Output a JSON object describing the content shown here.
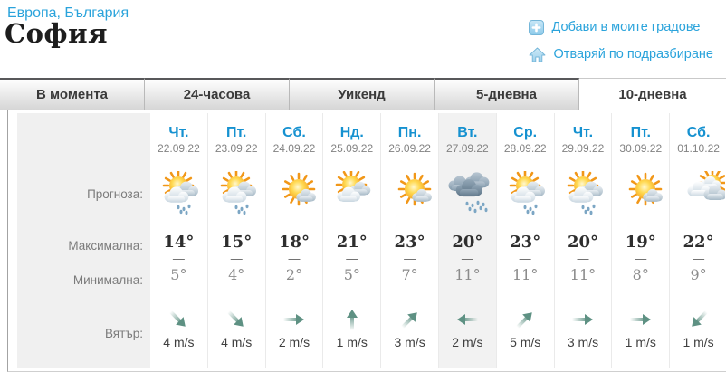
{
  "breadcrumb": {
    "region": "Европа",
    "separator": ", ",
    "country": "България"
  },
  "title": "София",
  "actions": [
    {
      "icon": "add-icon",
      "label": "Добави в моите градове"
    },
    {
      "icon": "home-icon",
      "label": "Отваряй по подразбиране"
    }
  ],
  "tabs": [
    {
      "label": "В момента",
      "active": false
    },
    {
      "label": "24-часова",
      "active": false
    },
    {
      "label": "Уикенд",
      "active": false
    },
    {
      "label": "5-дневна",
      "active": false
    },
    {
      "label": "10-дневна",
      "active": true
    }
  ],
  "row_labels": {
    "forecast": "Прогноза:",
    "max": "Максимална:",
    "min": "Минимална:",
    "wind": "Вятър:"
  },
  "temp_divider": "—",
  "days": [
    {
      "name": "Чт.",
      "date": "22.09.22",
      "icon": "sun-cloud-rain",
      "max": "14°",
      "min": "5°",
      "wind_dir": "SE",
      "wind_speed": "4 m/s",
      "highlight": false
    },
    {
      "name": "Пт.",
      "date": "23.09.22",
      "icon": "sun-cloud-rain",
      "max": "15°",
      "min": "4°",
      "wind_dir": "SE",
      "wind_speed": "4 m/s",
      "highlight": false
    },
    {
      "name": "Сб.",
      "date": "24.09.22",
      "icon": "sun-small-cloud",
      "max": "18°",
      "min": "2°",
      "wind_dir": "E",
      "wind_speed": "2 m/s",
      "highlight": false
    },
    {
      "name": "Нд.",
      "date": "25.09.22",
      "icon": "sun-clouds",
      "max": "21°",
      "min": "5°",
      "wind_dir": "N",
      "wind_speed": "1 m/s",
      "highlight": false
    },
    {
      "name": "Пн.",
      "date": "26.09.22",
      "icon": "sun-small-cloud",
      "max": "23°",
      "min": "7°",
      "wind_dir": "NE",
      "wind_speed": "3 m/s",
      "highlight": false
    },
    {
      "name": "Вт.",
      "date": "27.09.22",
      "icon": "dark-clouds-rain",
      "max": "20°",
      "min": "11°",
      "wind_dir": "W",
      "wind_speed": "2 m/s",
      "highlight": true
    },
    {
      "name": "Ср.",
      "date": "28.09.22",
      "icon": "sun-cloud-rain",
      "max": "23°",
      "min": "11°",
      "wind_dir": "NE",
      "wind_speed": "5 m/s",
      "highlight": false
    },
    {
      "name": "Чт.",
      "date": "29.09.22",
      "icon": "sun-cloud-rain",
      "max": "20°",
      "min": "11°",
      "wind_dir": "E",
      "wind_speed": "3 m/s",
      "highlight": false
    },
    {
      "name": "Пт.",
      "date": "30.09.22",
      "icon": "sun-small-cloud",
      "max": "19°",
      "min": "8°",
      "wind_dir": "E",
      "wind_speed": "1 m/s",
      "highlight": false
    },
    {
      "name": "Сб.",
      "date": "01.10.22",
      "icon": "clouds-sun",
      "max": "22°",
      "min": "9°",
      "wind_dir": "SW",
      "wind_speed": "1 m/s",
      "highlight": false
    }
  ],
  "colors": {
    "accent_blue": "#2aa3db",
    "day_link_blue": "#1591d0",
    "wind_arrow_green": "#5e9183",
    "label_bg": "#f0f0f0",
    "highlight_bg": "#f2f2f2"
  }
}
